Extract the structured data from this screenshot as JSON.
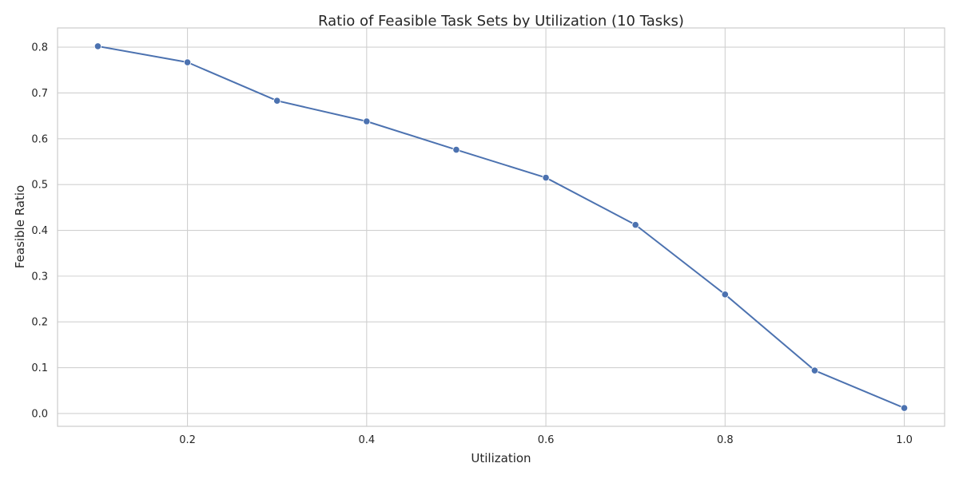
{
  "chart_data": {
    "type": "line",
    "title": "Ratio of Feasible Task Sets by Utilization (10 Tasks)",
    "xlabel": "Utilization",
    "ylabel": "Feasible Ratio",
    "x": [
      0.1,
      0.2,
      0.3,
      0.4,
      0.5,
      0.6,
      0.7,
      0.8,
      0.9,
      1.0
    ],
    "series": [
      {
        "name": "",
        "values": [
          0.802,
          0.767,
          0.683,
          0.638,
          0.576,
          0.515,
          0.412,
          0.26,
          0.094,
          0.012
        ],
        "color": "#4c72b0",
        "marker": "circle"
      }
    ],
    "xlim": [
      0.055,
      1.045
    ],
    "ylim": [
      -0.028,
      0.842
    ],
    "xticks": [
      0.2,
      0.4,
      0.6,
      0.8,
      1.0
    ],
    "xtick_labels": [
      "0.2",
      "0.4",
      "0.6",
      "0.8",
      "1.0"
    ],
    "yticks": [
      0.0,
      0.1,
      0.2,
      0.3,
      0.4,
      0.5,
      0.6,
      0.7,
      0.8
    ],
    "ytick_labels": [
      "0.0",
      "0.1",
      "0.2",
      "0.3",
      "0.4",
      "0.5",
      "0.6",
      "0.7",
      "0.8"
    ],
    "grid": true,
    "legend": "none"
  }
}
